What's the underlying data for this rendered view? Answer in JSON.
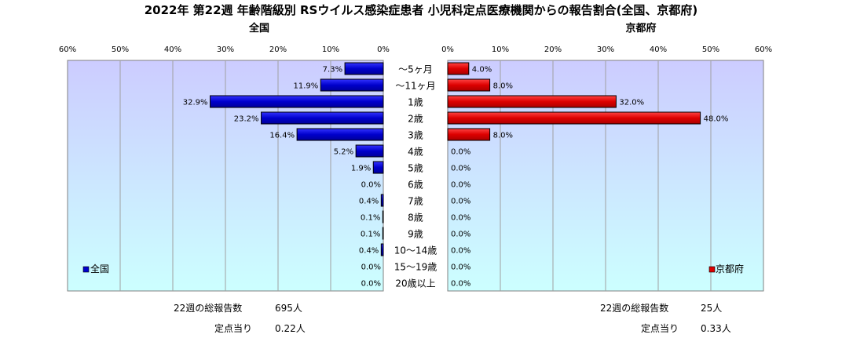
{
  "title": "2022年 第22週 年齢階級別 RSウイルス感染症患者 小児科定点医療機関からの報告割合(全国、京都府)",
  "colors": {
    "national_bar": "#0000cc",
    "kyoto_bar": "#dd0000",
    "plot_top": "#ccccff",
    "plot_bottom": "#ccffff"
  },
  "chart_data": [
    {
      "type": "bar",
      "orientation": "horizontal",
      "direction": "right-to-left",
      "title": "全国",
      "categories": [
        "～5ヶ月",
        "～11ヶ月",
        "1歳",
        "2歳",
        "3歳",
        "4歳",
        "5歳",
        "6歳",
        "7歳",
        "8歳",
        "9歳",
        "10～14歳",
        "15～19歳",
        "20歳以上"
      ],
      "series": [
        {
          "name": "全国",
          "values": [
            7.3,
            11.9,
            32.9,
            23.2,
            16.4,
            5.2,
            1.9,
            0.0,
            0.4,
            0.1,
            0.1,
            0.4,
            0.0,
            0.0
          ],
          "labels": [
            "7.3%",
            "11.9%",
            "32.9%",
            "23.2%",
            "16.4%",
            "5.2%",
            "1.9%",
            "0.0%",
            "0.4%",
            "0.1%",
            "0.1%",
            "0.4%",
            "0.0%",
            "0.0%"
          ]
        }
      ],
      "xlim": [
        0,
        60
      ],
      "ticks": [
        "60%",
        "50%",
        "40%",
        "30%",
        "20%",
        "10%",
        "0%"
      ],
      "legend": "bottom-left",
      "grid": true
    },
    {
      "type": "bar",
      "orientation": "horizontal",
      "direction": "left-to-right",
      "title": "京都府",
      "categories": [
        "～5ヶ月",
        "～11ヶ月",
        "1歳",
        "2歳",
        "3歳",
        "4歳",
        "5歳",
        "6歳",
        "7歳",
        "8歳",
        "9歳",
        "10～14歳",
        "15～19歳",
        "20歳以上"
      ],
      "series": [
        {
          "name": "京都府",
          "values": [
            4.0,
            8.0,
            32.0,
            48.0,
            8.0,
            0.0,
            0.0,
            0.0,
            0.0,
            0.0,
            0.0,
            0.0,
            0.0,
            0.0
          ],
          "labels": [
            "4.0%",
            "8.0%",
            "32.0%",
            "48.0%",
            "8.0%",
            "0.0%",
            "0.0%",
            "0.0%",
            "0.0%",
            "0.0%",
            "0.0%",
            "0.0%",
            "0.0%",
            "0.0%"
          ]
        }
      ],
      "xlim": [
        0,
        60
      ],
      "ticks": [
        "0%",
        "10%",
        "20%",
        "30%",
        "40%",
        "50%",
        "60%"
      ],
      "legend": "bottom-right",
      "grid": true
    }
  ],
  "footer": {
    "national": {
      "total_label": "22週の総報告数",
      "total_value": "695人",
      "per_label": "定点当り",
      "per_value": "0.22人"
    },
    "kyoto": {
      "total_label": "22週の総報告数",
      "total_value": "25人",
      "per_label": "定点当り",
      "per_value": "0.33人"
    }
  }
}
